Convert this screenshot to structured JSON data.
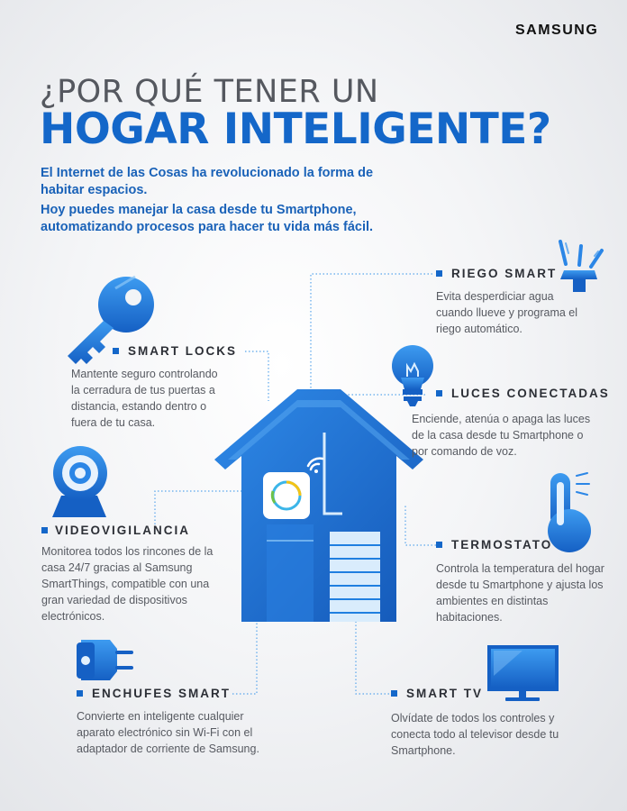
{
  "brand": "SAMSUNG",
  "title": {
    "line1": "¿POR QUÉ TENER UN",
    "line2": "HOGAR INTELIGENTE?"
  },
  "intro": {
    "p1": "El Internet de las Cosas ha revolucionado la forma de habitar espacios.",
    "p2": "Hoy puedes manejar la casa desde tu Smartphone, automatizando procesos para hacer tu vida más fácil."
  },
  "features": {
    "riego": {
      "title": "RIEGO SMART",
      "desc": "Evita desperdiciar agua cuando llueve y programa el riego automático.",
      "icon": "sprinkler-icon"
    },
    "locks": {
      "title": "SMART LOCKS",
      "desc": "Mantente seguro controlando la cerradura de tus puertas a distancia, estando dentro  o fuera de tu casa.",
      "icon": "key-icon"
    },
    "luces": {
      "title": "LUCES CONECTADAS",
      "desc": "Enciende, atenúa o apaga las luces de la casa desde tu Smartphone o por comando de voz.",
      "icon": "lightbulb-icon"
    },
    "video": {
      "title": "VIDEOVIGILANCIA",
      "desc": "Monitorea todos los rincones de la casa 24/7 gracias al Samsung SmartThings, compatible con una gran variedad de dispositivos electrónicos.",
      "icon": "camera-icon"
    },
    "termo": {
      "title": "TERMOSTATO",
      "desc": "Controla la temperatura del hogar desde tu Smartphone y ajusta los ambientes en distintas habitaciones.",
      "icon": "thermometer-icon"
    },
    "enchufes": {
      "title": "ENCHUFES SMART",
      "desc": "Convierte en inteligente cualquier aparato electrónico sin Wi-Fi con el adaptador de corriente de Samsung.",
      "icon": "plug-icon"
    },
    "tv": {
      "title": "SMART TV",
      "desc": "Olvídate de todos los controles y conecta todo al televisor desde tu Smartphone.",
      "icon": "tv-icon"
    }
  },
  "colors": {
    "accent": "#1467c9",
    "icon_blue": "#1f7fe0",
    "dark_text": "#2c2f36"
  }
}
